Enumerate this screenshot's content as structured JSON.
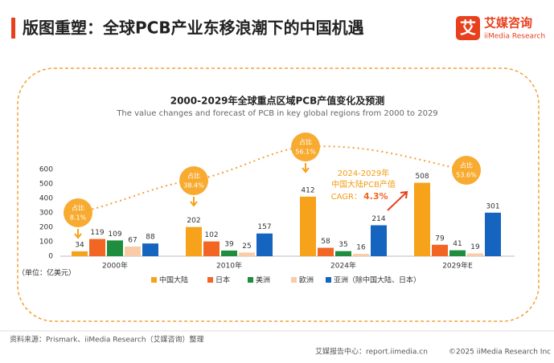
{
  "header": {
    "title": "版图重塑：全球PCB产业东移浪潮下的中国机遇",
    "logo_text": "艾",
    "brand": "艾媒咨询",
    "brand_en": "iiMedia Research"
  },
  "chart_data": {
    "type": "bar",
    "title": "2000-2029年全球重点区域PCB产值变化及预测",
    "subtitle": "The value changes and forecast of PCB in key global regions from 2000 to 2029",
    "unit_label": "（单位：亿美元）",
    "categories": [
      "2000年",
      "2010年",
      "2024年",
      "2029年E"
    ],
    "series": [
      {
        "name": "中国大陆",
        "color": "#f7a21b",
        "values": [
          34,
          202,
          412,
          508
        ]
      },
      {
        "name": "日本",
        "color": "#f26522",
        "values": [
          119,
          102,
          58,
          79
        ]
      },
      {
        "name": "美洲",
        "color": "#1e8e3e",
        "values": [
          109,
          39,
          35,
          41
        ]
      },
      {
        "name": "欧洲",
        "color": "#f9cba7",
        "values": [
          67,
          25,
          16,
          19
        ]
      },
      {
        "name": "亚洲（除中国大陆、日本）",
        "color": "#1565c0",
        "values": [
          88,
          157,
          214,
          301
        ]
      }
    ],
    "ylim": [
      0,
      600
    ],
    "yticks": [
      0,
      100,
      200,
      300,
      400,
      500,
      600
    ],
    "share_annotations": [
      {
        "title": "占比",
        "text": "8.1%"
      },
      {
        "title": "占比",
        "text": "38.4%"
      },
      {
        "title": "占比",
        "text": "56.1%"
      },
      {
        "title": "占比",
        "text": "53.6%"
      }
    ],
    "cagr_annotation": {
      "line1": "2024-2029年",
      "line2": "中国大陆PCB产值",
      "label": "CAGR：",
      "value": "4.3%"
    }
  },
  "footer": {
    "source": "资料来源：Prismark、iiMedia Research（艾媒咨询）整理",
    "report_center": "艾媒报告中心：report.iimedia.cn",
    "copyright": "©2025  iiMedia Research  Inc"
  }
}
